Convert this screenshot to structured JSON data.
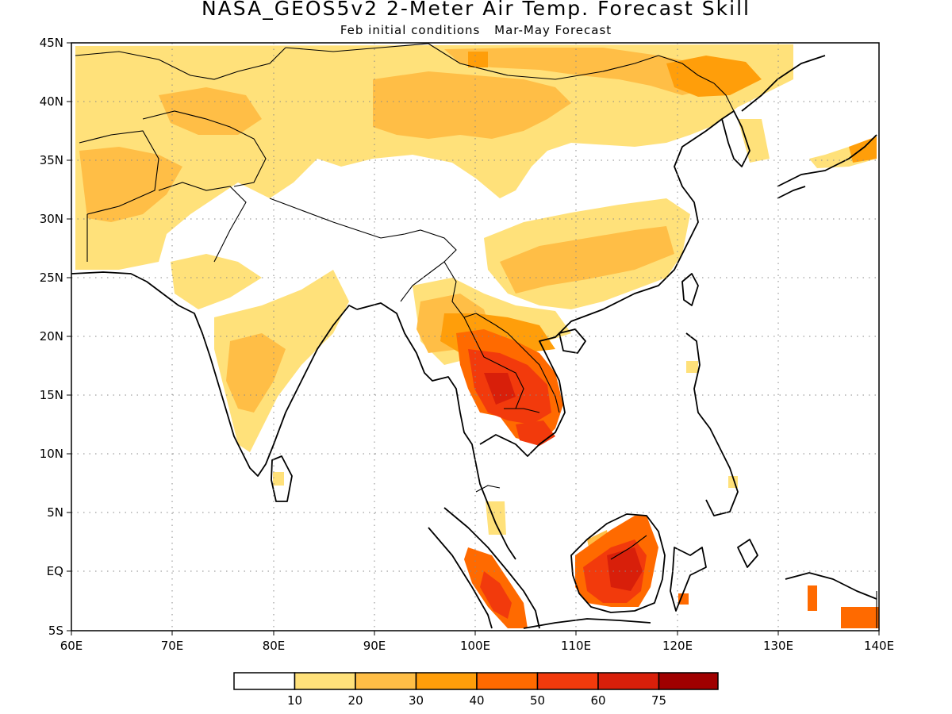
{
  "title": "NASA_GEOS5v2 2-Meter Air Temp. Forecast Skill",
  "subtitle_left": "Feb initial conditions",
  "subtitle_right": "Mar-May Forecast",
  "map": {
    "lon_range": [
      60,
      140
    ],
    "lat_range": [
      -5,
      45
    ],
    "lat_ticks": [
      "45N",
      "40N",
      "35N",
      "30N",
      "25N",
      "20N",
      "15N",
      "10N",
      "5N",
      "EQ",
      "5S"
    ],
    "lon_ticks": [
      "60E",
      "70E",
      "80E",
      "90E",
      "100E",
      "110E",
      "120E",
      "130E",
      "140E"
    ],
    "gridlines": "dotted"
  },
  "legend": {
    "boundaries": [
      "10",
      "20",
      "30",
      "40",
      "50",
      "60",
      "75"
    ],
    "colors": [
      "#ffffff",
      "#ffe17a",
      "#ffbe46",
      "#ff9e0a",
      "#ff6a00",
      "#f23a0c",
      "#d81f0a",
      "#a00000"
    ]
  }
}
